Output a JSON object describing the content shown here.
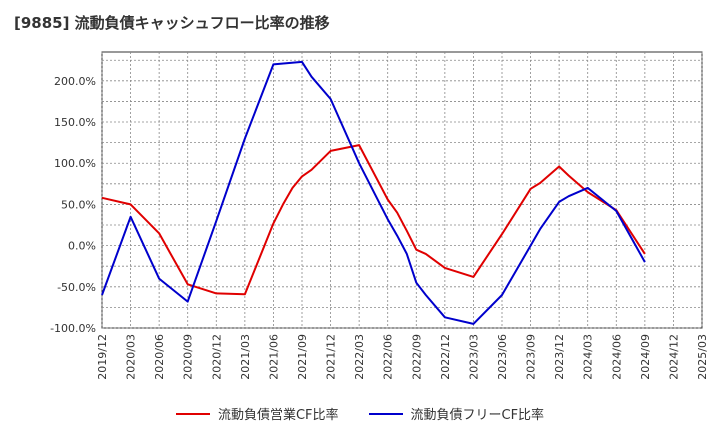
{
  "chart_data": {
    "type": "line",
    "title": "[9885]  流動負債キャッシュフロー比率の推移",
    "xlabel": "",
    "ylabel": "",
    "ylim": [
      -100,
      235
    ],
    "yticks": [
      "-100.0%",
      "-50.0%",
      "0.0%",
      "50.0%",
      "100.0%",
      "150.0%",
      "200.0%"
    ],
    "ytick_values": [
      -100,
      -50,
      0,
      50,
      100,
      150,
      200
    ],
    "x_tick_labels": [
      "2019/12",
      "2020/03",
      "2020/06",
      "2020/09",
      "2020/12",
      "2021/03",
      "2021/06",
      "2021/09",
      "2021/12",
      "2022/03",
      "2022/06",
      "2022/09",
      "2022/12",
      "2023/03",
      "2023/06",
      "2023/09",
      "2023/12",
      "2024/03",
      "2024/06",
      "2024/09",
      "2024/12",
      "2025/03"
    ],
    "grid": true,
    "legend_position": "bottom",
    "series": [
      {
        "name": "流動負債営業CF比率",
        "color": "#e00000",
        "x": [
          "2019/12",
          "2020/03",
          "2020/06",
          "2020/09",
          "2020/12",
          "2021/03",
          "2021/06",
          "2021/07",
          "2021/08",
          "2021/09",
          "2021/10",
          "2021/12",
          "2022/03",
          "2022/06",
          "2022/07",
          "2022/08",
          "2022/09",
          "2022/10",
          "2022/12",
          "2023/03",
          "2023/06",
          "2023/09",
          "2023/10",
          "2023/12",
          "2024/01",
          "2024/03",
          "2024/06",
          "2024/09"
        ],
        "values": [
          58,
          50,
          15,
          -47,
          -58,
          -59,
          27,
          50,
          70,
          84,
          92,
          115,
          122,
          56,
          40,
          18,
          -5,
          -10,
          -27,
          -38,
          14,
          69,
          76,
          96,
          85,
          65,
          43,
          -10
        ]
      },
      {
        "name": "流動負債フリーCF比率",
        "color": "#0000cc",
        "x": [
          "2019/12",
          "2020/03",
          "2020/06",
          "2020/09",
          "2020/12",
          "2021/03",
          "2021/06",
          "2021/09",
          "2021/10",
          "2021/12",
          "2022/03",
          "2022/06",
          "2022/07",
          "2022/08",
          "2022/09",
          "2022/10",
          "2022/12",
          "2023/03",
          "2023/06",
          "2023/09",
          "2023/10",
          "2023/12",
          "2024/01",
          "2024/03",
          "2024/06",
          "2024/09"
        ],
        "values": [
          -60,
          35,
          -40,
          -68,
          30,
          130,
          220,
          223,
          205,
          178,
          100,
          32,
          12,
          -10,
          -45,
          -60,
          -87,
          -95,
          -60,
          0,
          20,
          53,
          60,
          70,
          42,
          -20
        ]
      }
    ]
  }
}
